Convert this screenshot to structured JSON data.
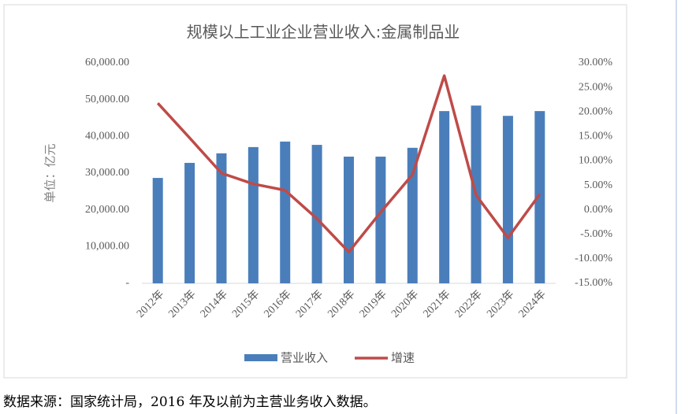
{
  "chart_data": {
    "type": "combo",
    "title": "规模以上工业企业营业收入:金属制品业",
    "y_label": "单位：亿元",
    "categories": [
      "2012年",
      "2013年",
      "2014年",
      "2015年",
      "2016年",
      "2017年",
      "2018年",
      "2019年",
      "2020年",
      "2021年",
      "2022年",
      "2023年",
      "2024年"
    ],
    "series": [
      {
        "name": "营业收入",
        "type": "bar",
        "color": "#4a7ebb",
        "values": [
          28700,
          32800,
          35400,
          37100,
          38600,
          37700,
          34500,
          34500,
          36900,
          46900,
          48400,
          45600,
          46900
        ]
      },
      {
        "name": "增速",
        "type": "line",
        "axis": "y2",
        "color": "#be4b48",
        "values": [
          21.8,
          14.7,
          7.5,
          5.3,
          4.0,
          -1.8,
          -8.6,
          -0.5,
          7.2,
          27.4,
          3.0,
          -5.7,
          3.2
        ]
      }
    ],
    "ylim": [
      0,
      60000
    ],
    "yticks": [
      {
        "value": 0,
        "label": "-"
      },
      {
        "value": 10000,
        "label": "10,000.00"
      },
      {
        "value": 20000,
        "label": "20,000.00"
      },
      {
        "value": 30000,
        "label": "30,000.00"
      },
      {
        "value": 40000,
        "label": "40,000.00"
      },
      {
        "value": 50000,
        "label": "50,000.00"
      },
      {
        "value": 60000,
        "label": "60,000.00"
      }
    ],
    "y2lim": [
      -15,
      30
    ],
    "y2ticks": [
      {
        "value": -15,
        "label": "-15.00%"
      },
      {
        "value": -10,
        "label": "-10.00%"
      },
      {
        "value": -5,
        "label": "-5.00%"
      },
      {
        "value": 0,
        "label": "0.00%"
      },
      {
        "value": 5,
        "label": "5.00%"
      },
      {
        "value": 10,
        "label": "10.00%"
      },
      {
        "value": 15,
        "label": "15.00%"
      },
      {
        "value": 20,
        "label": "20.00%"
      },
      {
        "value": 25,
        "label": "25.00%"
      },
      {
        "value": 30,
        "label": "30.00%"
      }
    ],
    "legend": "bottom"
  },
  "footnote": "数据来源：国家统计局，2016 年及以前为主营业务收入数据。"
}
